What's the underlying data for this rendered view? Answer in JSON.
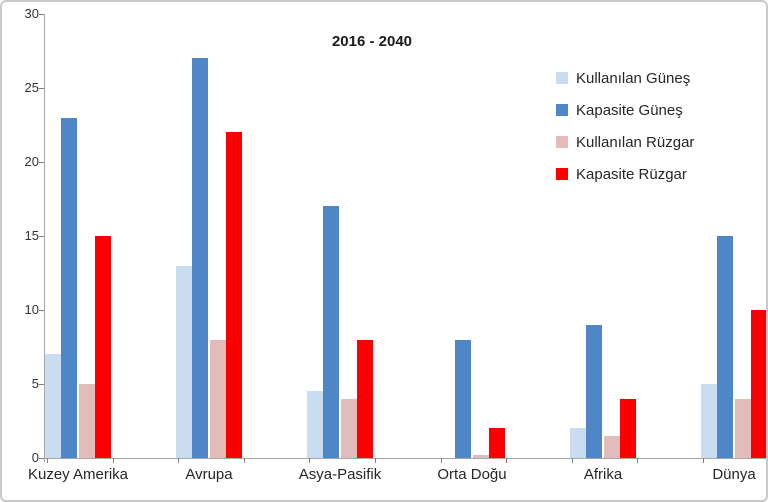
{
  "chart_data": {
    "type": "bar",
    "title": "2016 - 2040",
    "categories": [
      "Kuzey Amerika",
      "Avrupa",
      "Asya-Pasifik",
      "Orta Doğu",
      "Afrika",
      "Dünya"
    ],
    "series": [
      {
        "name": "Kullanılan Güneş",
        "color": "#c9dcf0",
        "values": [
          7,
          13,
          4.5,
          0,
          2,
          5
        ]
      },
      {
        "name": "Kapasite Güneş",
        "color": "#4e86c8",
        "values": [
          23,
          27,
          17,
          8,
          9,
          15
        ]
      },
      {
        "name": "Kullanılan Rüzgar",
        "color": "#e3bbbb",
        "values": [
          5,
          8,
          4,
          0.2,
          1.5,
          4
        ]
      },
      {
        "name": "Kapasite Rüzgar",
        "color": "#fb0000",
        "values": [
          15,
          22,
          8,
          2,
          4,
          10
        ]
      }
    ],
    "xlabel": "",
    "ylabel": "",
    "ylim": [
      0,
      30
    ],
    "yticks": [
      0,
      5,
      10,
      15,
      20,
      25,
      30
    ],
    "grid": false,
    "legend_position": "right-top",
    "axis_color": "#a6a6a6",
    "tick_color": "#7f7f7f",
    "background_color": "#ffffff"
  }
}
